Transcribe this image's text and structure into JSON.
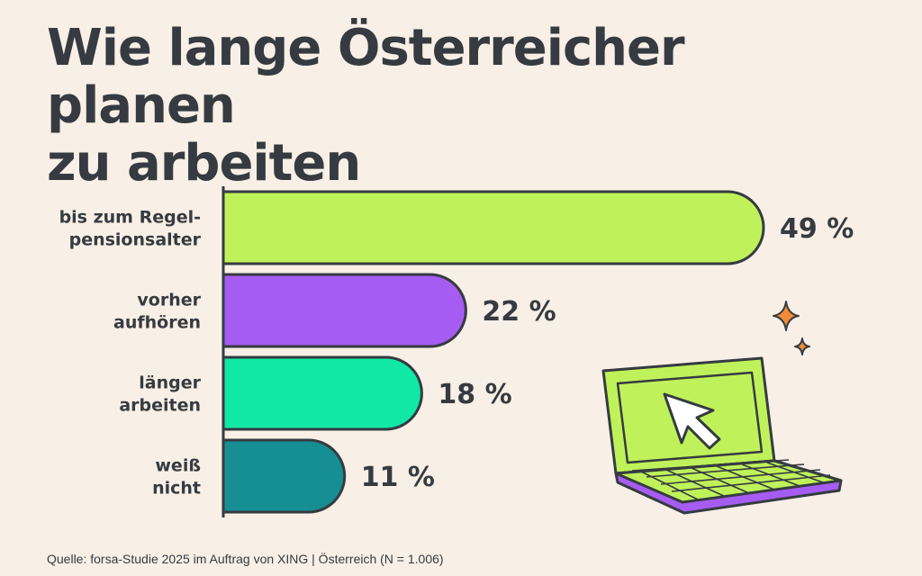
{
  "title_lines": [
    "Wie lange Österreicher planen",
    "zu arbeiten"
  ],
  "source": "Quelle: forsa-Studie 2025 im Auftrag von XING | Österreich (N = 1.006)",
  "chart_data": {
    "type": "bar",
    "orientation": "horizontal",
    "title": "Wie lange Österreicher planen zu arbeiten",
    "categories": [
      [
        "bis zum Regel-",
        "pensionsalter"
      ],
      [
        "vorher",
        "aufhören"
      ],
      [
        "länger",
        "arbeiten"
      ],
      [
        "weiß",
        "nicht"
      ]
    ],
    "values": [
      49,
      22,
      18,
      11
    ],
    "value_labels": [
      "49 %",
      "22 %",
      "18 %",
      "11 %"
    ],
    "unit": "%",
    "colors": [
      "#bff25a",
      "#a65cf2",
      "#10e8a6",
      "#168f94"
    ],
    "xlabel": "",
    "ylabel": "",
    "xlim": [
      0,
      49
    ]
  },
  "colors": {
    "background": "#f8efe6",
    "text": "#353b40",
    "outline": "#353b40",
    "sparkle": "#f08a3a",
    "laptop_screen": "#bff25a",
    "laptop_base": "#a65cf2"
  }
}
